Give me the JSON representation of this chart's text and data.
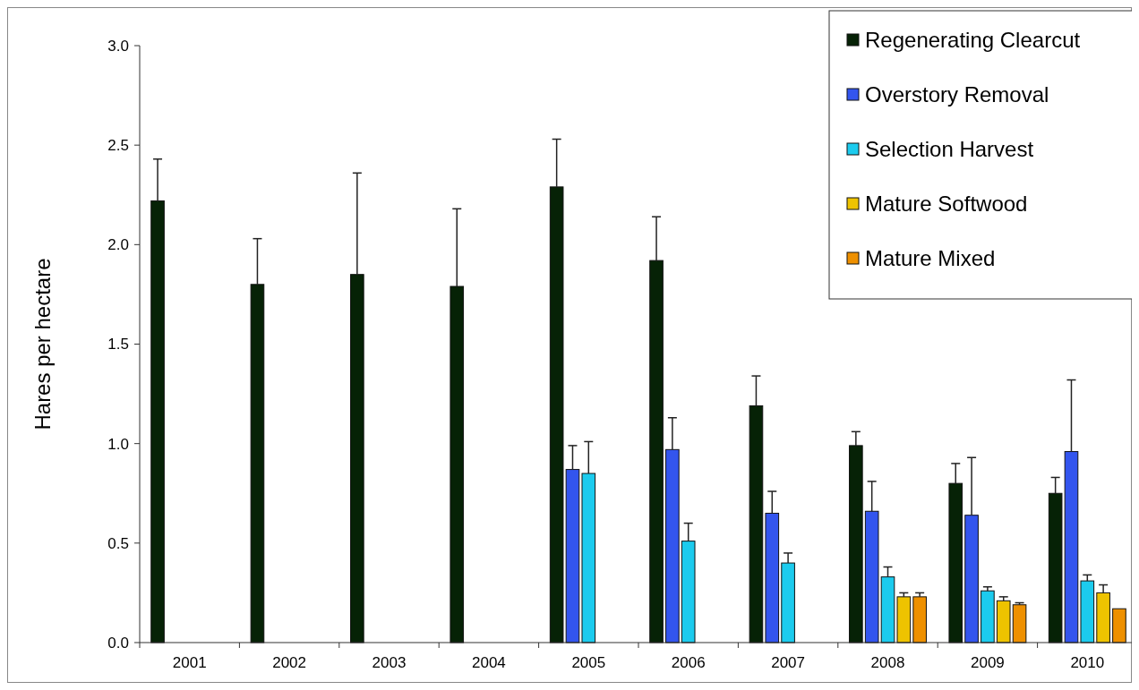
{
  "chart_data": {
    "type": "bar",
    "ylabel": "Hares per hectare",
    "categories": [
      "2001",
      "2002",
      "2003",
      "2004",
      "2005",
      "2006",
      "2007",
      "2008",
      "2009",
      "2010"
    ],
    "series": [
      {
        "name": "Regenerating Clearcut",
        "color": "#062206",
        "values": [
          2.22,
          1.8,
          1.85,
          1.79,
          2.29,
          1.92,
          1.19,
          0.99,
          0.8,
          0.75
        ],
        "errors": [
          [
            2.22,
            2.43
          ],
          [
            1.8,
            2.03
          ],
          [
            1.85,
            2.36
          ],
          [
            1.79,
            2.18
          ],
          [
            2.29,
            2.53
          ],
          [
            1.92,
            2.14
          ],
          [
            1.19,
            1.34
          ],
          [
            0.99,
            1.06
          ],
          [
            0.8,
            0.9
          ],
          [
            0.75,
            0.83
          ]
        ]
      },
      {
        "name": "Overstory Removal",
        "color": "#3355ee",
        "values": [
          null,
          null,
          null,
          null,
          0.87,
          0.97,
          0.65,
          0.66,
          0.64,
          0.96
        ],
        "errors": [
          null,
          null,
          null,
          null,
          [
            0.87,
            0.99
          ],
          [
            0.97,
            1.13
          ],
          [
            0.65,
            0.76
          ],
          [
            0.66,
            0.81
          ],
          [
            0.64,
            0.93
          ],
          [
            0.96,
            1.32
          ]
        ]
      },
      {
        "name": "Selection Harvest",
        "color": "#1ccbee",
        "values": [
          null,
          null,
          null,
          null,
          0.85,
          0.51,
          0.4,
          0.33,
          0.26,
          0.31
        ],
        "errors": [
          null,
          null,
          null,
          null,
          [
            0.85,
            1.01
          ],
          [
            0.51,
            0.6
          ],
          [
            0.4,
            0.45
          ],
          [
            0.33,
            0.38
          ],
          [
            0.26,
            0.28
          ],
          [
            0.31,
            0.34
          ]
        ]
      },
      {
        "name": "Mature Softwood",
        "color": "#eec300",
        "values": [
          null,
          null,
          null,
          null,
          null,
          null,
          null,
          0.23,
          0.21,
          0.25
        ],
        "errors": [
          null,
          null,
          null,
          null,
          null,
          null,
          null,
          [
            0.23,
            0.25
          ],
          [
            0.21,
            0.23
          ],
          [
            0.25,
            0.29
          ]
        ]
      },
      {
        "name": "Mature Mixed",
        "color": "#ee9000",
        "values": [
          null,
          null,
          null,
          null,
          null,
          null,
          null,
          0.23,
          0.19,
          0.17
        ],
        "errors": [
          null,
          null,
          null,
          null,
          null,
          null,
          null,
          [
            0.23,
            0.25
          ],
          [
            0.19,
            0.2
          ],
          null
        ]
      }
    ],
    "ylim": [
      0,
      3
    ],
    "yticks": [
      {
        "value": 0,
        "label": "0.0"
      },
      {
        "value": 0.5,
        "label": "0.5"
      },
      {
        "value": 1,
        "label": "1.0"
      },
      {
        "value": 1.5,
        "label": "1.5"
      },
      {
        "value": 2,
        "label": "2.0"
      },
      {
        "value": 2.5,
        "label": "2.5"
      },
      {
        "value": 3,
        "label": "3.0"
      }
    ],
    "legend": "top right",
    "grid": false
  }
}
